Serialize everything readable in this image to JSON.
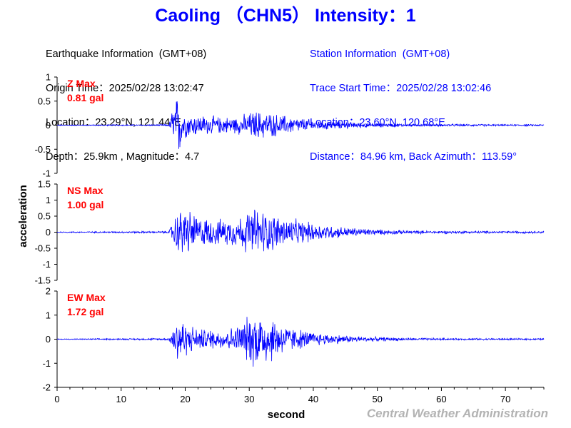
{
  "title": "Caoling （CHN5） Intensity：1",
  "earthquake": {
    "heading": "Earthquake Information  (GMT+08)",
    "origin_time": "Origin Time：2025/02/28 13:02:47",
    "location": "Location：23.29°N, 121.44°E",
    "depth_magnitude": "Depth：25.9km , Magnitude：4.7"
  },
  "station": {
    "heading": "Station Information  (GMT+08)",
    "trace_start": "Trace Start Time：2025/02/28 13:02:46",
    "location": "Location：23.60°N, 120.68°E",
    "distance": "Distance：84.96 km, Back Azimuth：113.59°"
  },
  "credit": "Central Weather Administration",
  "colors": {
    "title": "#0000ff",
    "trace": "#0000ff",
    "label": "#ff0000",
    "station_info": "#0000ff",
    "credit": "#b3b3b3"
  },
  "chart_data": {
    "type": "line",
    "xlabel": "second",
    "ylabel": "acceleration",
    "xlim": [
      0,
      76
    ],
    "xticks": [
      0,
      10,
      20,
      30,
      40,
      50,
      60,
      70
    ],
    "panels": [
      {
        "name": "Z",
        "label": "Z Max",
        "max_text": "0.81 gal",
        "ylim": [
          -1,
          1
        ],
        "yticks": [
          1,
          0.5,
          0,
          -0.5,
          -1
        ],
        "ytick_labels": [
          "1",
          "0.5",
          "0",
          "-0.5",
          "-1"
        ],
        "envelope": {
          "x": [
            0,
            17.5,
            18,
            19,
            20,
            22,
            25,
            28,
            31,
            33,
            36,
            40,
            45,
            50,
            55,
            60,
            65,
            70,
            76
          ],
          "amp": [
            0.01,
            0.02,
            0.45,
            0.75,
            0.3,
            0.25,
            0.2,
            0.2,
            0.35,
            0.3,
            0.22,
            0.13,
            0.08,
            0.05,
            0.03,
            0.03,
            0.025,
            0.02,
            0.02
          ]
        }
      },
      {
        "name": "NS",
        "label": "NS Max",
        "max_text": "1.00 gal",
        "ylim": [
          -1.5,
          1.5
        ],
        "yticks": [
          1.5,
          1,
          0.5,
          0,
          -0.5,
          -1,
          -1.5
        ],
        "ytick_labels": [
          "1.5",
          "1",
          "0.5",
          "0",
          "-0.5",
          "-1",
          "-1.5"
        ],
        "envelope": {
          "x": [
            0,
            17.5,
            18,
            19,
            20,
            22,
            25,
            28,
            31,
            33,
            36,
            40,
            45,
            50,
            55,
            60,
            65,
            70,
            76
          ],
          "amp": [
            0.02,
            0.04,
            0.4,
            0.8,
            0.9,
            0.55,
            0.45,
            0.5,
            0.9,
            0.7,
            0.5,
            0.33,
            0.18,
            0.1,
            0.06,
            0.05,
            0.045,
            0.04,
            0.04
          ]
        }
      },
      {
        "name": "EW",
        "label": "EW Max",
        "max_text": "1.72 gal",
        "ylim": [
          -2,
          2
        ],
        "yticks": [
          2,
          1,
          0,
          -1,
          -2
        ],
        "ytick_labels": [
          "2",
          "1",
          "0",
          "-1",
          "-2"
        ],
        "envelope": {
          "x": [
            0,
            17.5,
            18,
            19,
            20,
            22,
            25,
            28,
            31,
            33,
            36,
            40,
            45,
            50,
            55,
            60,
            65,
            70,
            76
          ],
          "amp": [
            0.02,
            0.05,
            0.6,
            1.3,
            0.8,
            0.5,
            0.45,
            0.6,
            1.4,
            1.2,
            0.6,
            0.33,
            0.18,
            0.1,
            0.06,
            0.05,
            0.045,
            0.04,
            0.04
          ]
        }
      }
    ]
  }
}
